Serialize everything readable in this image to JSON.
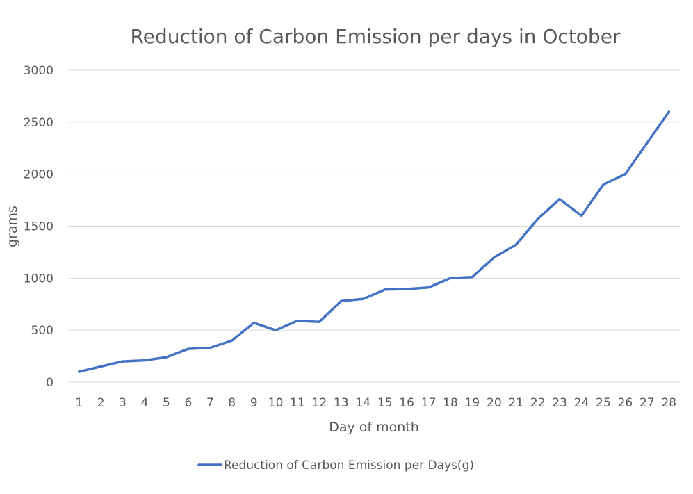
{
  "chart_data": {
    "type": "line",
    "title": "Reduction of Carbon Emission per days in October",
    "xlabel": "Day of month",
    "ylabel": "grams",
    "ylim": [
      0,
      3000
    ],
    "yticks": [
      "0",
      "500",
      "1000",
      "1500",
      "2000",
      "2500",
      "3000"
    ],
    "categories": [
      "1",
      "2",
      "3",
      "4",
      "5",
      "6",
      "7",
      "8",
      "9",
      "10",
      "11",
      "12",
      "13",
      "14",
      "15",
      "16",
      "17",
      "18",
      "19",
      "20",
      "21",
      "22",
      "23",
      "24",
      "25",
      "26",
      "27",
      "28"
    ],
    "series": [
      {
        "name": "Reduction of Carbon Emission per Days(g)",
        "color": "#4472c4",
        "values": [
          100,
          150,
          200,
          210,
          240,
          320,
          330,
          400,
          570,
          500,
          590,
          580,
          780,
          800,
          890,
          895,
          910,
          1000,
          1010,
          1200,
          1320,
          1570,
          1760,
          1600,
          1900,
          2000,
          2300,
          2600
        ]
      }
    ],
    "grid": true,
    "legend_position": "bottom"
  }
}
